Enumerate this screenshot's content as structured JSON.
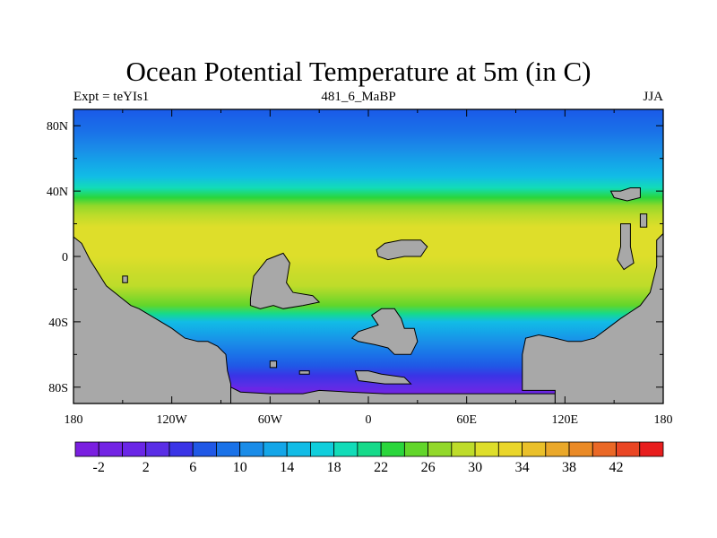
{
  "title": "Ocean Potential Temperature at 5m (in C)",
  "subtitle_left": "Expt = teYIs1",
  "subtitle_center": "481_6_MaBP",
  "subtitle_right": "JJA",
  "lat_labels": [
    "80N",
    "40N",
    "0",
    "40S",
    "80S"
  ],
  "lon_labels": [
    "180",
    "120W",
    "60W",
    "0",
    "60E",
    "120E",
    "180"
  ],
  "colorbar": {
    "labels": [
      "-2",
      "2",
      "6",
      "10",
      "14",
      "18",
      "22",
      "26",
      "30",
      "34",
      "38",
      "42"
    ],
    "colors": [
      "#7a1fe0",
      "#7324e4",
      "#6a26e6",
      "#5a2ee6",
      "#3a34e6",
      "#2058e6",
      "#1a72e8",
      "#1a8ce8",
      "#14a6e8",
      "#12bce6",
      "#10cedc",
      "#12dcb8",
      "#16da8a",
      "#2ad63c",
      "#62d62a",
      "#92d82a",
      "#bedc2a",
      "#dede2a",
      "#ead62a",
      "#eac02a",
      "#eaa82a",
      "#ea8a26",
      "#ea6826",
      "#ea4624",
      "#e81e1e"
    ]
  },
  "field": {
    "bands": [
      {
        "lat": 90,
        "color": "#1a5ae8"
      },
      {
        "lat": 76,
        "color": "#1a72e8"
      },
      {
        "lat": 66,
        "color": "#1a8ce8"
      },
      {
        "lat": 57,
        "color": "#14a6e8"
      },
      {
        "lat": 49,
        "color": "#12bce6"
      },
      {
        "lat": 42,
        "color": "#12dcb8"
      },
      {
        "lat": 36,
        "color": "#2ad63c"
      },
      {
        "lat": 31,
        "color": "#92d82a"
      },
      {
        "lat": 25,
        "color": "#bedc2a"
      },
      {
        "lat": 18,
        "color": "#dede2a"
      },
      {
        "lat": 10,
        "color": "#dede2a"
      },
      {
        "lat": 0,
        "color": "#dede2a"
      },
      {
        "lat": -10,
        "color": "#cadc2a"
      },
      {
        "lat": -18,
        "color": "#bedc2a"
      },
      {
        "lat": -24,
        "color": "#92d82a"
      },
      {
        "lat": -30,
        "color": "#62d62a"
      },
      {
        "lat": -35,
        "color": "#16da8a"
      },
      {
        "lat": -40,
        "color": "#12bce6"
      },
      {
        "lat": -46,
        "color": "#14a6e8"
      },
      {
        "lat": -53,
        "color": "#1a8ce8"
      },
      {
        "lat": -60,
        "color": "#1a72e8"
      },
      {
        "lat": -67,
        "color": "#2058e6"
      },
      {
        "lat": -73,
        "color": "#3a34e6"
      },
      {
        "lat": -79,
        "color": "#5a2ee6"
      },
      {
        "lat": -84,
        "color": "#7324e4"
      },
      {
        "lat": -90,
        "color": "#7a1fe0"
      }
    ],
    "land_color": "#a8a8a8",
    "land": [
      {
        "name": "west-continent",
        "points": [
          [
            -180,
            12
          ],
          [
            -175,
            8
          ],
          [
            -170,
            -2
          ],
          [
            -160,
            -18
          ],
          [
            -150,
            -26
          ],
          [
            -145,
            -30
          ],
          [
            -140,
            -32
          ],
          [
            -130,
            -38
          ],
          [
            -120,
            -44
          ],
          [
            -112,
            -50
          ],
          [
            -104,
            -52
          ],
          [
            -98,
            -52
          ],
          [
            -92,
            -55
          ],
          [
            -87,
            -60
          ],
          [
            -86,
            -70
          ],
          [
            -84,
            -78
          ],
          [
            -84,
            -80
          ],
          [
            -84,
            -90
          ],
          [
            -180,
            -90
          ]
        ]
      },
      {
        "name": "south-polar-landmass",
        "points": [
          [
            -84,
            -80
          ],
          [
            -78,
            -83
          ],
          [
            -60,
            -84
          ],
          [
            -40,
            -84
          ],
          [
            -30,
            -82
          ],
          [
            -12,
            -83
          ],
          [
            10,
            -84
          ],
          [
            38,
            -84
          ],
          [
            60,
            -84
          ],
          [
            82,
            -84
          ],
          [
            102,
            -84
          ],
          [
            114,
            -84
          ],
          [
            114,
            -90
          ],
          [
            -84,
            -90
          ]
        ]
      },
      {
        "name": "south-central-continent",
        "points": [
          [
            94,
            -82
          ],
          [
            94,
            -60
          ],
          [
            96,
            -50
          ],
          [
            104,
            -48
          ],
          [
            114,
            -50
          ],
          [
            122,
            -52
          ],
          [
            130,
            -52
          ],
          [
            138,
            -50
          ],
          [
            146,
            -44
          ],
          [
            154,
            -38
          ],
          [
            160,
            -34
          ],
          [
            166,
            -30
          ],
          [
            172,
            -22
          ],
          [
            176,
            -6
          ],
          [
            176,
            10
          ],
          [
            180,
            14
          ],
          [
            180,
            -90
          ],
          [
            114,
            -90
          ],
          [
            114,
            -82
          ]
        ]
      },
      {
        "name": "central-island",
        "points": [
          [
            -72,
            -26
          ],
          [
            -70,
            -12
          ],
          [
            -62,
            -2
          ],
          [
            -52,
            2
          ],
          [
            -48,
            -4
          ],
          [
            -50,
            -16
          ],
          [
            -46,
            -22
          ],
          [
            -34,
            -24
          ],
          [
            -30,
            -28
          ],
          [
            -40,
            -30
          ],
          [
            -52,
            -32
          ],
          [
            -58,
            -30
          ],
          [
            -66,
            -32
          ],
          [
            -72,
            -30
          ]
        ]
      },
      {
        "name": "equatorial-island",
        "points": [
          [
            5,
            4
          ],
          [
            10,
            8
          ],
          [
            20,
            10
          ],
          [
            32,
            10
          ],
          [
            36,
            6
          ],
          [
            32,
            0
          ],
          [
            22,
            0
          ],
          [
            12,
            -2
          ],
          [
            6,
            0
          ]
        ]
      },
      {
        "name": "southern-island",
        "points": [
          [
            2,
            -36
          ],
          [
            8,
            -32
          ],
          [
            16,
            -32
          ],
          [
            20,
            -38
          ],
          [
            22,
            -44
          ],
          [
            28,
            -44
          ],
          [
            30,
            -52
          ],
          [
            26,
            -60
          ],
          [
            16,
            -60
          ],
          [
            12,
            -56
          ],
          [
            4,
            -54
          ],
          [
            -6,
            -52
          ],
          [
            -10,
            -50
          ],
          [
            -6,
            -46
          ],
          [
            0,
            -44
          ],
          [
            6,
            -42
          ]
        ]
      },
      {
        "name": "north-east-small-island",
        "points": [
          [
            148,
            40
          ],
          [
            154,
            40
          ],
          [
            160,
            42
          ],
          [
            166,
            42
          ],
          [
            166,
            36
          ],
          [
            158,
            34
          ],
          [
            150,
            36
          ]
        ]
      },
      {
        "name": "east-small-strip",
        "points": [
          [
            154,
            20
          ],
          [
            160,
            20
          ],
          [
            160,
            6
          ],
          [
            162,
            -4
          ],
          [
            156,
            -8
          ],
          [
            152,
            -2
          ],
          [
            154,
            6
          ]
        ]
      },
      {
        "name": "east-small-block",
        "points": [
          [
            166,
            26
          ],
          [
            170,
            26
          ],
          [
            170,
            18
          ],
          [
            166,
            18
          ]
        ]
      },
      {
        "name": "ice-shelf-strip",
        "points": [
          [
            -8,
            -70
          ],
          [
            0,
            -70
          ],
          [
            8,
            -72
          ],
          [
            22,
            -74
          ],
          [
            26,
            -78
          ],
          [
            10,
            -78
          ],
          [
            -6,
            -76
          ]
        ]
      },
      {
        "name": "small-islet-1",
        "points": [
          [
            -60,
            -64
          ],
          [
            -56,
            -64
          ],
          [
            -56,
            -68
          ],
          [
            -60,
            -68
          ]
        ]
      },
      {
        "name": "small-islet-2",
        "points": [
          [
            -42,
            -70
          ],
          [
            -36,
            -70
          ],
          [
            -36,
            -72
          ],
          [
            -42,
            -72
          ]
        ]
      },
      {
        "name": "tiny-islet-west",
        "points": [
          [
            -150,
            -12
          ],
          [
            -147,
            -12
          ],
          [
            -147,
            -16
          ],
          [
            -150,
            -16
          ]
        ]
      }
    ],
    "cold_patches": [
      {
        "name": "cold-shelf-west",
        "color": "#6a26e6",
        "points": [
          [
            -86,
            -78
          ],
          [
            -78,
            -80
          ],
          [
            -60,
            -80
          ],
          [
            -44,
            -82
          ],
          [
            -40,
            -84
          ],
          [
            -84,
            -84
          ]
        ]
      },
      {
        "name": "cold-shelf-east",
        "color": "#6a26e6",
        "points": [
          [
            60,
            -82
          ],
          [
            86,
            -82
          ],
          [
            110,
            -80
          ],
          [
            110,
            -84
          ],
          [
            60,
            -84
          ]
        ]
      }
    ]
  }
}
